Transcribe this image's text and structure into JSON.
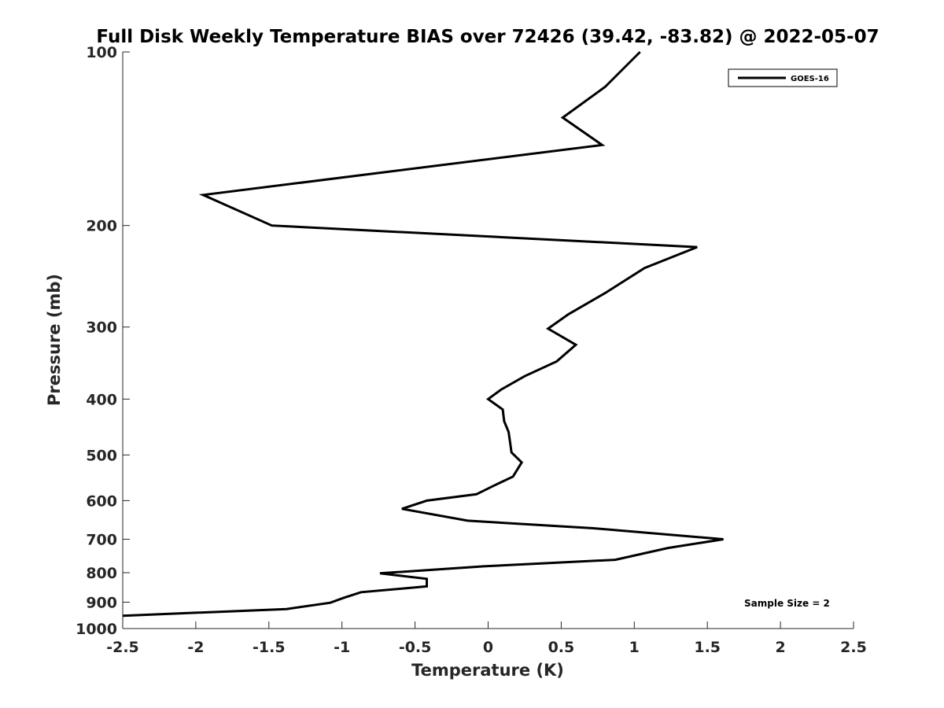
{
  "chart_data": {
    "type": "line",
    "title": "Full Disk Weekly Temperature BIAS over 72426 (39.42, -83.82) @ 2022-05-07",
    "xlabel": "Temperature (K)",
    "ylabel": "Pressure (mb)",
    "xlim": [
      -2.5,
      2.5
    ],
    "ylim": [
      100,
      1000
    ],
    "yscale": "log",
    "y_reversed": true,
    "x_ticks": [
      -2.5,
      -2,
      -1.5,
      -1,
      -0.5,
      0,
      0.5,
      1,
      1.5,
      2,
      2.5
    ],
    "x_tick_labels": [
      "-2.5",
      "-2",
      "-1.5",
      "-1",
      "-0.5",
      "0",
      "0.5",
      "1",
      "1.5",
      "2",
      "2.5"
    ],
    "y_ticks": [
      100,
      200,
      300,
      400,
      500,
      600,
      700,
      800,
      900,
      1000
    ],
    "y_tick_labels": [
      "100",
      "200",
      "300",
      "400",
      "500",
      "600",
      "700",
      "800",
      "900",
      "1000"
    ],
    "grid": false,
    "legend_position": "top-right",
    "annotation": "Sample Size = 2",
    "line_color": "#000000",
    "series": [
      {
        "name": "GOES-16",
        "points": [
          [
            1.04,
            100
          ],
          [
            0.8,
            115
          ],
          [
            0.51,
            130
          ],
          [
            0.78,
            145
          ],
          [
            -1.95,
            177
          ],
          [
            -1.48,
            200
          ],
          [
            1.43,
            218
          ],
          [
            1.07,
            237
          ],
          [
            0.8,
            262
          ],
          [
            0.55,
            285
          ],
          [
            0.41,
            302
          ],
          [
            0.6,
            322
          ],
          [
            0.47,
            344
          ],
          [
            0.25,
            365
          ],
          [
            0.09,
            385
          ],
          [
            0.0,
            400
          ],
          [
            0.1,
            417
          ],
          [
            0.11,
            437
          ],
          [
            0.14,
            456
          ],
          [
            0.15,
            475
          ],
          [
            0.16,
            495
          ],
          [
            0.23,
            515
          ],
          [
            0.17,
            545
          ],
          [
            0.04,
            565
          ],
          [
            -0.08,
            585
          ],
          [
            -0.42,
            600
          ],
          [
            -0.59,
            620
          ],
          [
            -0.14,
            650
          ],
          [
            0.72,
            670
          ],
          [
            1.61,
            700
          ],
          [
            1.23,
            725
          ],
          [
            0.87,
            760
          ],
          [
            -0.03,
            780
          ],
          [
            -0.74,
            802
          ],
          [
            -0.42,
            820
          ],
          [
            -0.42,
            845
          ],
          [
            -0.87,
            865
          ],
          [
            -0.99,
            885
          ],
          [
            -1.08,
            902
          ],
          [
            -1.38,
            925
          ],
          [
            -2.5,
            950
          ]
        ]
      }
    ]
  }
}
